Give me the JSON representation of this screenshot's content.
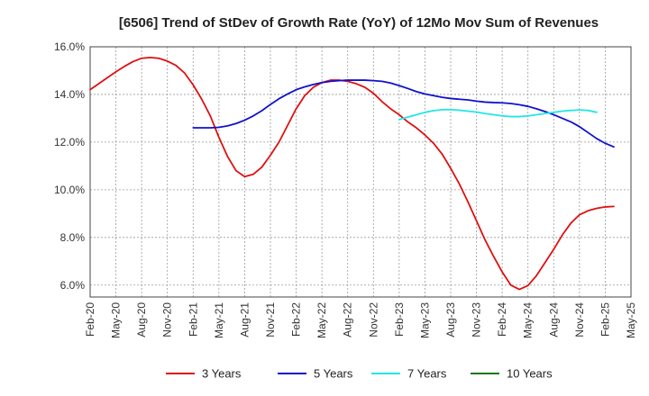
{
  "chart_data": {
    "type": "line",
    "title": "[6506]  Trend of StDev of Growth Rate (YoY) of 12Mo Mov Sum of Revenues",
    "xlabel": "",
    "ylabel": "",
    "ylim": [
      5.5,
      16.0
    ],
    "y_ticks": [
      6.0,
      8.0,
      10.0,
      12.0,
      14.0,
      16.0
    ],
    "y_tick_labels": [
      "6.0%",
      "8.0%",
      "10.0%",
      "12.0%",
      "14.0%",
      "16.0%"
    ],
    "x_tick_labels": [
      "Feb-20",
      "May-20",
      "Aug-20",
      "Nov-20",
      "Feb-21",
      "May-21",
      "Aug-21",
      "Nov-21",
      "Feb-22",
      "May-22",
      "Aug-22",
      "Nov-22",
      "Feb-23",
      "May-23",
      "Aug-23",
      "Nov-23",
      "Feb-24",
      "May-24",
      "Aug-24",
      "Nov-24",
      "Feb-25",
      "May-25"
    ],
    "grid": true,
    "legend_position": "bottom",
    "series": [
      {
        "name": "3 Years",
        "color": "#dd1111",
        "start_index": 0,
        "values": [
          14.2,
          14.45,
          14.7,
          14.95,
          15.18,
          15.38,
          15.52,
          15.55,
          15.52,
          15.4,
          15.22,
          14.9,
          14.4,
          13.8,
          13.1,
          12.2,
          11.4,
          10.8,
          10.55,
          10.65,
          10.95,
          11.45,
          12.0,
          12.7,
          13.4,
          13.95,
          14.3,
          14.5,
          14.6,
          14.6,
          14.55,
          14.45,
          14.3,
          14.05,
          13.7,
          13.4,
          13.15,
          12.85,
          12.6,
          12.3,
          11.95,
          11.5,
          10.9,
          10.25,
          9.5,
          8.7,
          7.9,
          7.2,
          6.55,
          6.0,
          5.82,
          5.98,
          6.4,
          6.95,
          7.5,
          8.1,
          8.6,
          8.95,
          9.12,
          9.22,
          9.28,
          9.3
        ]
      },
      {
        "name": "5 Years",
        "color": "#1111cc",
        "start_index": 12,
        "values": [
          12.6,
          12.6,
          12.6,
          12.62,
          12.68,
          12.78,
          12.92,
          13.1,
          13.32,
          13.58,
          13.82,
          14.02,
          14.2,
          14.32,
          14.42,
          14.5,
          14.55,
          14.58,
          14.6,
          14.6,
          14.6,
          14.58,
          14.55,
          14.48,
          14.37,
          14.25,
          14.12,
          14.02,
          13.95,
          13.88,
          13.83,
          13.8,
          13.77,
          13.72,
          13.68,
          13.66,
          13.65,
          13.62,
          13.57,
          13.5,
          13.4,
          13.28,
          13.15,
          13.0,
          12.85,
          12.65,
          12.4,
          12.15,
          11.95,
          11.8
        ]
      },
      {
        "name": "7 Years",
        "color": "#22e6e6",
        "start_index": 36,
        "values": [
          12.95,
          13.05,
          13.15,
          13.25,
          13.32,
          13.36,
          13.36,
          13.34,
          13.3,
          13.26,
          13.2,
          13.15,
          13.1,
          13.07,
          13.07,
          13.1,
          13.15,
          13.2,
          13.25,
          13.3,
          13.33,
          13.35,
          13.33,
          13.25
        ]
      },
      {
        "name": "10 Years",
        "color": "#117711",
        "start_index": 0,
        "values": []
      }
    ]
  }
}
